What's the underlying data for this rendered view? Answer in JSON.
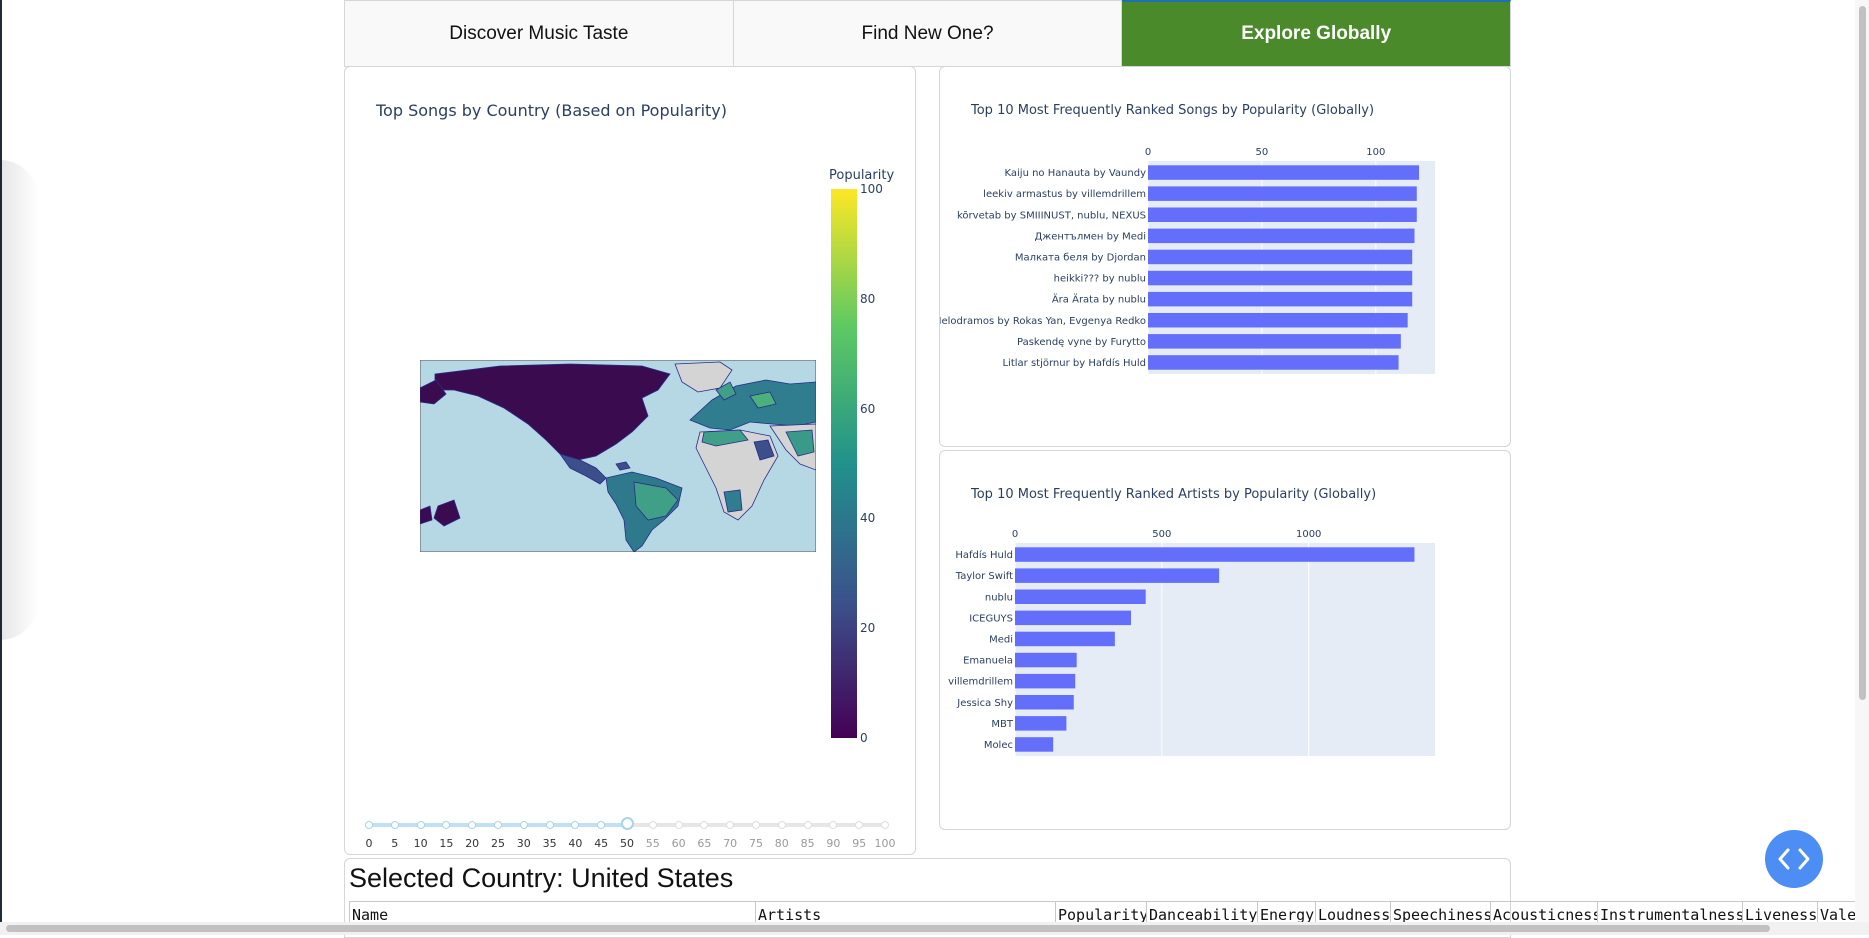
{
  "tabs": [
    {
      "label": "Discover Music Taste"
    },
    {
      "label": "Find New One?"
    },
    {
      "label": "Explore Globally"
    }
  ],
  "map_panel": {
    "title": "Top Songs by Country (Based on Popularity)",
    "colorbar": {
      "title": "Popularity",
      "ticks": [
        "100",
        "80",
        "60",
        "40",
        "20",
        "0"
      ],
      "min": 0,
      "max": 100
    },
    "slider": {
      "ticks": [
        "0",
        "5",
        "10",
        "15",
        "20",
        "25",
        "30",
        "35",
        "40",
        "45",
        "50",
        "55",
        "60",
        "65",
        "70",
        "75",
        "80",
        "85",
        "90",
        "95",
        "100"
      ],
      "value": 50
    }
  },
  "songs_panel": {
    "title": "Top 10 Most Frequently Ranked Songs by Popularity (Globally)"
  },
  "artists_panel": {
    "title": "Top 10 Most Frequently Ranked Artists by Popularity (Globally)"
  },
  "chart_data": [
    {
      "type": "bar",
      "orientation": "horizontal",
      "categories": [
        "Kaiju no Hanauta by Vaundy",
        "leekiv armastus by villemdrillem",
        "kõrvetab by SMIIINUST, nublu, NEXUS",
        "Джентълмен by Medi",
        "Малката беля by Djordan",
        "heikki??? by nublu",
        "Ära Ärata by nublu",
        "Melodramos by Rokas Yan, Evgenya Redko",
        "Paskendę vyne by Furytto",
        "Litlar stjörnur by Hafdís Huld"
      ],
      "values": [
        119,
        118,
        118,
        117,
        116,
        116,
        116,
        114,
        111,
        110
      ],
      "x_ticks": [
        "0",
        "50",
        "100"
      ],
      "xlim": [
        0,
        126
      ],
      "bar_color": "#636efa",
      "plot_bg": "#e5ecf6"
    },
    {
      "type": "bar",
      "orientation": "horizontal",
      "categories": [
        "Hafdís Huld",
        "Taylor Swift",
        "nublu",
        "ICEGUYS",
        "Medi",
        "Emanuela",
        "villemdrillem",
        "Jessica Shy",
        "MBT",
        "Molec"
      ],
      "values": [
        1360,
        695,
        445,
        395,
        340,
        210,
        205,
        200,
        175,
        130
      ],
      "x_ticks": [
        "0",
        "500",
        "1000"
      ],
      "xlim": [
        0,
        1430
      ],
      "bar_color": "#636efa",
      "plot_bg": "#e5ecf6"
    }
  ],
  "selected_country": {
    "heading": "Selected Country: United States",
    "columns": [
      "Name",
      "Artists",
      "Popularity",
      "Danceability",
      "Energy",
      "Loudness",
      "Speechiness",
      "Acousticness",
      "Instrumentalness",
      "Liveness",
      "Valen"
    ]
  },
  "colors": {
    "active_tab": "#4a8a2a",
    "bar": "#636efa",
    "plot_bg": "#e5ecf6",
    "ocean": "#b6d8e4",
    "land": "#d4d4d4",
    "button": "#4d8ef5"
  }
}
